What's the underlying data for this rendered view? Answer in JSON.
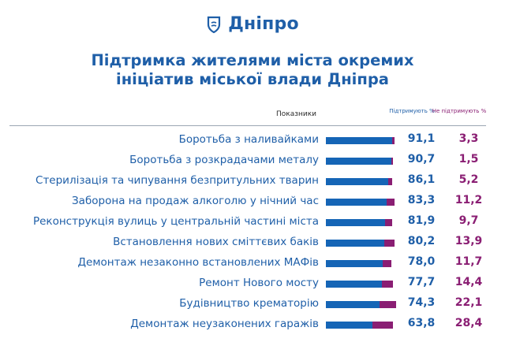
{
  "brand": {
    "name": "Дніпро",
    "color": "#1f5fa8",
    "icon": "dnipro-logo-icon"
  },
  "title": {
    "line1": "Підтримка жителями міста окремих",
    "line2": "ініціатив міської влади Дніпра"
  },
  "header": {
    "indicators": "Показники",
    "support": "Підтримують %",
    "no_support": "Не підтримують %"
  },
  "colors": {
    "support": "#1565b6",
    "no_support": "#8a1e73"
  },
  "chart_data": {
    "type": "bar",
    "orientation": "horizontal",
    "stacked": true,
    "categories": [
      "Боротьба з наливайками",
      "Боротьба з розкрадачами металу",
      "Стерилізація та чипування безпритульних тварин",
      "Заборона на продаж алкоголю у нічний час",
      "Реконструкція вулиць у центральній частині міста",
      "Встановлення нових сміттєвих баків",
      "Демонтаж незаконно встановлених МАФів",
      "Ремонт Нового мосту",
      "Будівництво крематорію",
      "Демонтаж неузаконених гаражів"
    ],
    "series": [
      {
        "name": "Підтримують %",
        "values": [
          91.1,
          90.7,
          86.1,
          83.3,
          81.9,
          80.2,
          78.0,
          77.7,
          74.3,
          63.8
        ],
        "labels": [
          "91,1",
          "90,7",
          "86,1",
          "83,3",
          "81,9",
          "80,2",
          "78,0",
          "77,7",
          "74,3",
          "63,8"
        ]
      },
      {
        "name": "Не підтримують %",
        "values": [
          3.3,
          1.5,
          5.2,
          11.2,
          9.7,
          13.9,
          11.7,
          14.4,
          22.1,
          28.4
        ],
        "labels": [
          "3,3",
          "1,5",
          "5,2",
          "11,2",
          "9,7",
          "13,9",
          "11,7",
          "14,4",
          "22,1",
          "28,4"
        ]
      }
    ]
  }
}
